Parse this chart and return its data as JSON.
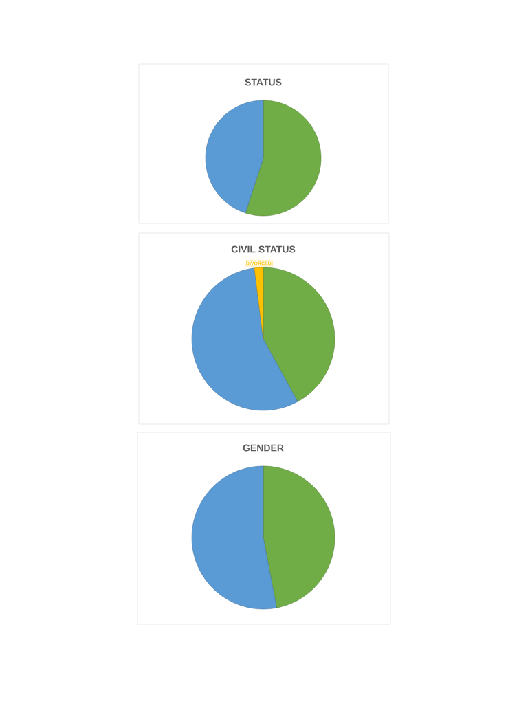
{
  "chart_data": [
    {
      "type": "pie",
      "title": "STATUS",
      "categories": [
        null,
        null
      ],
      "values": [
        55,
        45
      ],
      "colors": [
        "#70ad47",
        "#5b9bd5"
      ]
    },
    {
      "type": "pie",
      "title": "CIVIL STATUS",
      "categories": [
        null,
        null,
        "DIVORCED"
      ],
      "values": [
        42,
        56,
        2
      ],
      "colors": [
        "#70ad47",
        "#5b9bd5",
        "#ffc000"
      ]
    },
    {
      "type": "pie",
      "title": "GENDER",
      "categories": [
        null,
        null
      ],
      "values": [
        47,
        53
      ],
      "colors": [
        "#70ad47",
        "#5b9bd5"
      ]
    }
  ]
}
